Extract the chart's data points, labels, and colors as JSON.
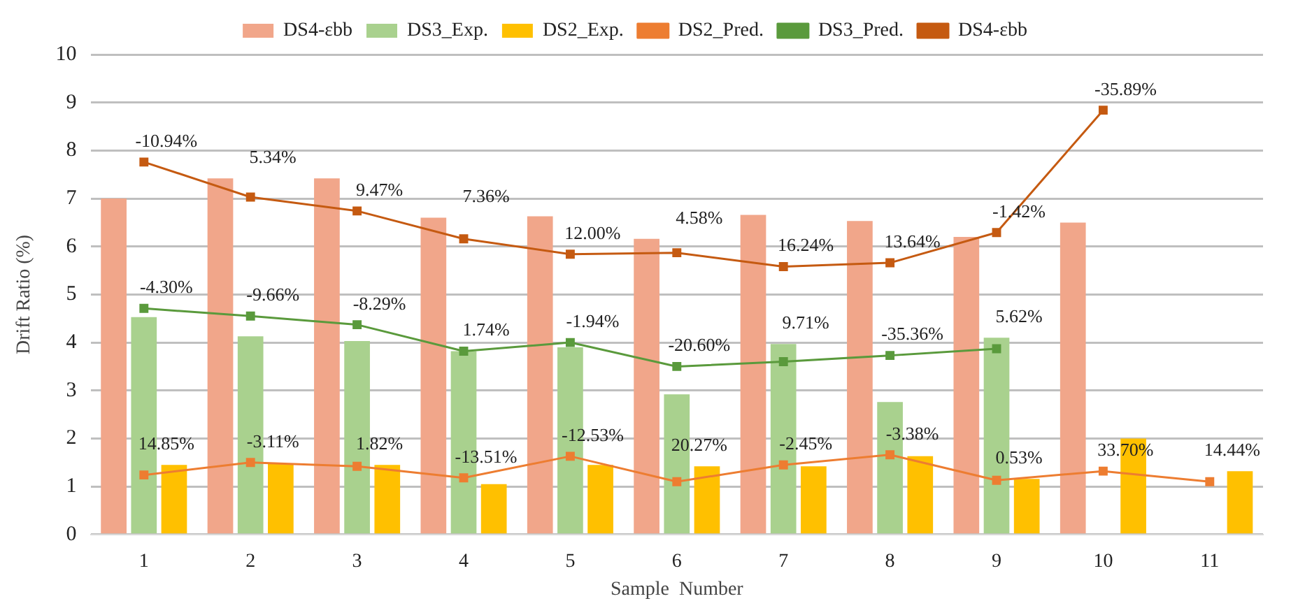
{
  "chart_data": {
    "type": "bar",
    "xlabel": "Sample  Number",
    "ylabel": "Drift Ratio (%)",
    "categories": [
      "1",
      "2",
      "3",
      "4",
      "5",
      "6",
      "7",
      "8",
      "9",
      "10",
      "11"
    ],
    "ylim": [
      0,
      10
    ],
    "yticks": [
      0,
      1,
      2,
      3,
      4,
      5,
      6,
      7,
      8,
      9,
      10
    ],
    "grid": "y",
    "legend": "top",
    "marker": "square",
    "series": [
      {
        "name": "DS4-εbb",
        "color": "#f1a68a",
        "values": [
          7.0,
          7.42,
          7.42,
          6.6,
          6.63,
          6.16,
          6.66,
          6.53,
          6.2,
          6.5,
          null
        ]
      },
      {
        "name": "DS3_Exp.",
        "color": "#a9d18e",
        "values": [
          4.53,
          4.13,
          4.03,
          3.82,
          3.9,
          2.92,
          3.97,
          2.76,
          4.1,
          null,
          null
        ]
      },
      {
        "name": "DS2_Exp.",
        "color": "#ffc000",
        "values": [
          1.45,
          1.48,
          1.45,
          1.05,
          1.45,
          1.42,
          1.42,
          1.63,
          1.16,
          2.0,
          1.32
        ]
      },
      {
        "name": "DS2_Pred.",
        "type": "line",
        "color": "#ed7d31",
        "values": [
          1.24,
          1.5,
          1.42,
          1.18,
          1.63,
          1.1,
          1.45,
          1.66,
          1.13,
          1.32,
          1.1
        ]
      },
      {
        "name": "DS3_Pred.",
        "type": "line",
        "color": "#5a9a3c",
        "values": [
          4.71,
          4.55,
          4.37,
          3.82,
          4.0,
          3.5,
          3.6,
          3.73,
          3.87,
          null,
          null
        ]
      },
      {
        "name": "DS4-εbb",
        "type": "line",
        "color": "#c55a11",
        "values": [
          7.76,
          7.03,
          6.74,
          6.16,
          5.84,
          5.87,
          5.58,
          5.66,
          6.29,
          8.84,
          null
        ]
      }
    ],
    "annotations": [
      {
        "text": "14.85%",
        "x": "1",
        "y": 1.24
      },
      {
        "text": "-3.11%",
        "x": "2",
        "y": 1.5
      },
      {
        "text": "1.82%",
        "x": "3",
        "y": 1.42
      },
      {
        "text": "-13.51%",
        "x": "4",
        "y": 1.18
      },
      {
        "text": "-12.53%",
        "x": "5",
        "y": 1.63
      },
      {
        "text": "20.27%",
        "x": "6",
        "y": 1.1
      },
      {
        "text": "-2.45%",
        "x": "7",
        "y": 1.45
      },
      {
        "text": "-3.38%",
        "x": "8",
        "y": 1.66
      },
      {
        "text": "0.53%",
        "x": "9",
        "y": 1.13
      },
      {
        "text": "33.70%",
        "x": "10",
        "y": 1.32
      },
      {
        "text": "14.44%",
        "x": "11",
        "y": 1.1
      },
      {
        "text": "-4.30%",
        "x": "1",
        "y": 4.71
      },
      {
        "text": "-9.66%",
        "x": "2",
        "y": 4.55
      },
      {
        "text": "-8.29%",
        "x": "3",
        "y": 4.37
      },
      {
        "text": "1.74%",
        "x": "4",
        "y": 3.82
      },
      {
        "text": "-1.94%",
        "x": "5",
        "y": 4.0
      },
      {
        "text": "-20.60%",
        "x": "6",
        "y": 3.5
      },
      {
        "text": "9.71%",
        "x": "7",
        "y": 3.6
      },
      {
        "text": "-35.36%",
        "x": "8",
        "y": 3.73
      },
      {
        "text": "5.62%",
        "x": "9",
        "y": 3.87
      },
      {
        "text": "-10.94%",
        "x": "1",
        "y": 7.76
      },
      {
        "text": "5.34%",
        "x": "2",
        "y": 7.03
      },
      {
        "text": "9.47%",
        "x": "3",
        "y": 6.74
      },
      {
        "text": "7.36%",
        "x": "4",
        "y": 6.16
      },
      {
        "text": "12.00%",
        "x": "5",
        "y": 5.84
      },
      {
        "text": "4.58%",
        "x": "6",
        "y": 5.87
      },
      {
        "text": "16.24%",
        "x": "7",
        "y": 5.58
      },
      {
        "text": "13.64%",
        "x": "8",
        "y": 5.66
      },
      {
        "text": "-1.42%",
        "x": "9",
        "y": 6.29
      },
      {
        "text": "-35.89%",
        "x": "10",
        "y": 8.84
      }
    ]
  }
}
